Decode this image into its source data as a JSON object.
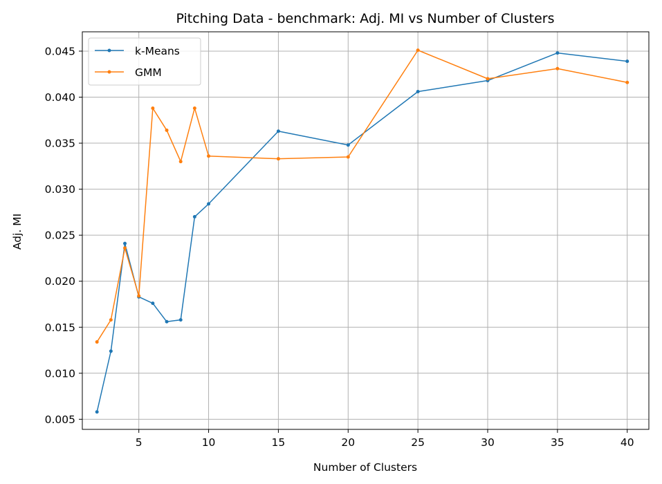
{
  "chart_data": {
    "type": "line",
    "title": "Pitching Data - benchmark: Adj. MI vs Number of Clusters",
    "xlabel": "Number of Clusters",
    "ylabel": "Adj. MI",
    "x": [
      2,
      3,
      4,
      5,
      6,
      7,
      8,
      9,
      10,
      15,
      20,
      25,
      30,
      35,
      40
    ],
    "xlim": [
      0.95,
      41.55
    ],
    "ylim": [
      0.0039,
      0.0471
    ],
    "xticks": [
      5,
      10,
      15,
      20,
      25,
      30,
      35,
      40
    ],
    "yticks": [
      0.005,
      0.01,
      0.015,
      0.02,
      0.025,
      0.03,
      0.035,
      0.04,
      0.045
    ],
    "xtick_labels": [
      "5",
      "10",
      "15",
      "20",
      "25",
      "30",
      "35",
      "40"
    ],
    "ytick_labels": [
      "0.005",
      "0.010",
      "0.015",
      "0.020",
      "0.025",
      "0.030",
      "0.035",
      "0.040",
      "0.045"
    ],
    "grid": true,
    "legend_position": "top-left",
    "series": [
      {
        "name": "k-Means",
        "color": "#1f77b4",
        "values": [
          0.0058,
          0.0124,
          0.0241,
          0.0183,
          0.0176,
          0.0156,
          0.0158,
          0.027,
          0.0284,
          0.0363,
          0.0348,
          0.0406,
          0.0418,
          0.0448,
          0.0439
        ]
      },
      {
        "name": "GMM",
        "color": "#ff7f0e",
        "values": [
          0.0134,
          0.0158,
          0.0236,
          0.0184,
          0.0388,
          0.0364,
          0.033,
          0.0388,
          0.0336,
          0.0333,
          0.0335,
          0.0451,
          0.042,
          0.0431,
          0.0416
        ]
      }
    ]
  }
}
